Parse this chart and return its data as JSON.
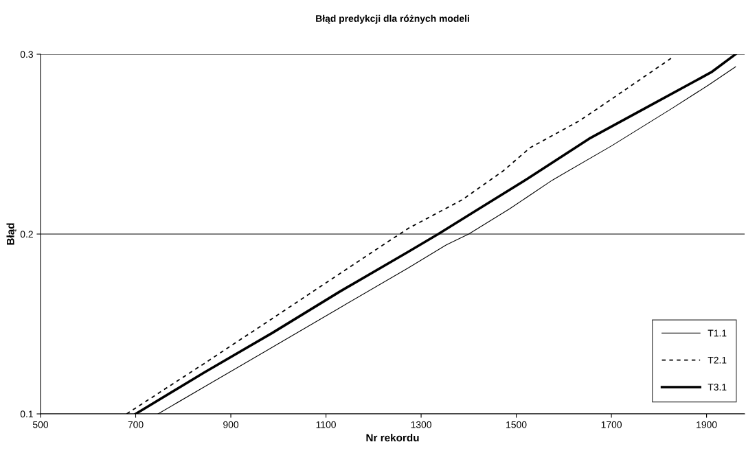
{
  "chart_data": {
    "type": "line",
    "title": "Błąd predykcji dla różnych modeli",
    "xlabel": "Nr rekordu",
    "ylabel": "Błąd",
    "xlim": [
      500,
      1980
    ],
    "xticks": [
      500,
      700,
      900,
      1100,
      1300,
      1500,
      1700,
      1900
    ],
    "ylim": [
      0.1,
      0.3
    ],
    "yticks": [
      0.1,
      0.2,
      0.3
    ],
    "grid": "y",
    "legend": "bottom right",
    "marker": "none",
    "series": [
      {
        "name": "T1.1",
        "color": "#000000",
        "line_style": "solid",
        "x": [
          747,
          844,
          987,
          1129,
          1272,
          1353,
          1400,
          1486,
          1576,
          1700,
          1828,
          1905,
          1961
        ],
        "values": [
          0.1,
          0.115,
          0.137,
          0.159,
          0.181,
          0.194,
          0.2,
          0.214,
          0.23,
          0.249,
          0.27,
          0.283,
          0.293
        ]
      },
      {
        "name": "T2.1",
        "color": "#000000",
        "line_style": "dashed",
        "x": [
          681,
          844,
          987,
          1129,
          1272,
          1386,
          1472,
          1529,
          1633,
          1700,
          1827
        ],
        "values": [
          0.1,
          0.128,
          0.153,
          0.178,
          0.203,
          0.219,
          0.235,
          0.248,
          0.263,
          0.275,
          0.298
        ]
      },
      {
        "name": "T3.1",
        "color": "#000000",
        "line_style": "solid",
        "x": [
          700,
          844,
          987,
          1129,
          1272,
          1336,
          1415,
          1525,
          1653,
          1771,
          1910,
          1961
        ],
        "values": [
          0.1,
          0.123,
          0.145,
          0.168,
          0.19,
          0.2,
          0.213,
          0.231,
          0.253,
          0.27,
          0.29,
          0.3
        ]
      }
    ]
  }
}
